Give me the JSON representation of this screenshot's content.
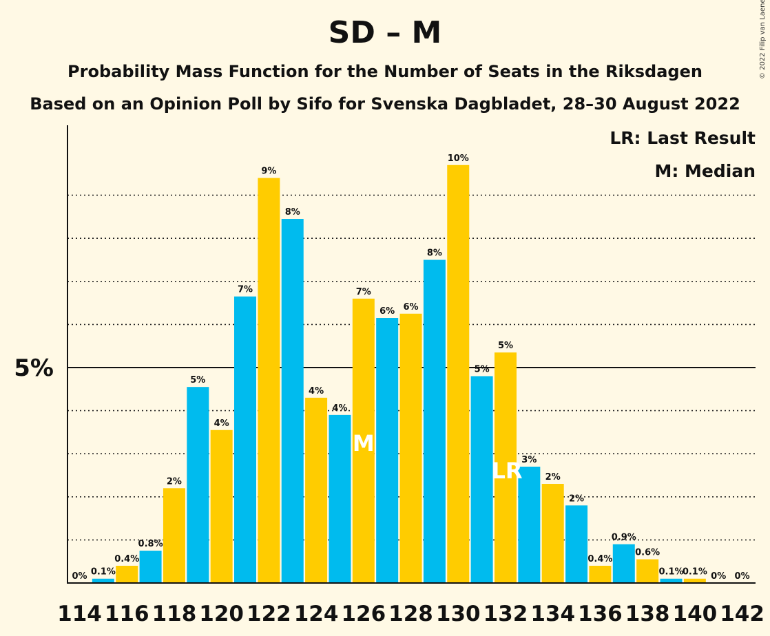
{
  "chart_data": {
    "type": "bar",
    "title": "SD – M",
    "subtitle": [
      "Probability Mass Function for the Number of Seats in the Riksdagen",
      "Based on an Opinion Poll by Sifo for Svenska Dagbladet, 28–30 August 2022"
    ],
    "copyright": "© 2022 Filip van Laenen",
    "legend": [
      "LR: Last Result",
      "M: Median"
    ],
    "legend_position": "top-right",
    "ylabel_major": "5%",
    "ylim": [
      0,
      11
    ],
    "grid": true,
    "x_tick_labels": [
      "114",
      "116",
      "118",
      "120",
      "122",
      "124",
      "126",
      "128",
      "130",
      "132",
      "134",
      "136",
      "138",
      "140",
      "142"
    ],
    "colors": {
      "blue": "#00BBEE",
      "yellow": "#FFCC00",
      "background": "#FFF9E5"
    },
    "seats": [
      114,
      115,
      116,
      117,
      118,
      119,
      120,
      121,
      122,
      123,
      124,
      125,
      126,
      127,
      128,
      129,
      130,
      131,
      132,
      133,
      134,
      135,
      136,
      137,
      138,
      139,
      140,
      141,
      142
    ],
    "values": [
      0,
      0.1,
      0.4,
      0.75,
      2.2,
      4.55,
      3.55,
      6.65,
      9.4,
      8.45,
      4.3,
      3.9,
      6.6,
      6.15,
      6.25,
      7.5,
      9.7,
      4.8,
      5.35,
      2.7,
      2.3,
      1.8,
      0.4,
      0.9,
      0.55,
      0.1,
      0.1,
      0,
      0
    ],
    "labels": [
      "0%",
      "0.1%",
      "0.4%",
      "0.8%",
      "2%",
      "5%",
      "4%",
      "7%",
      "9%",
      "8%",
      "4%",
      "4%",
      "7%",
      "6%",
      "6%",
      "8%",
      "10%",
      "5%",
      "5%",
      "3%",
      "2%",
      "2%",
      "0.4%",
      "0.9%",
      "0.6%",
      "0.1%",
      "0.1%",
      "0%",
      "0%"
    ],
    "bar_colors": [
      "yellow",
      "blue",
      "yellow",
      "blue",
      "yellow",
      "blue",
      "yellow",
      "blue",
      "yellow",
      "blue",
      "yellow",
      "blue",
      "yellow",
      "blue",
      "yellow",
      "blue",
      "yellow",
      "blue",
      "yellow",
      "blue",
      "yellow",
      "blue",
      "yellow",
      "blue",
      "yellow",
      "blue",
      "yellow",
      "blue",
      "yellow"
    ],
    "median_seat": 126,
    "median_mark": "M",
    "last_result_seat": 132,
    "last_result_mark": "LR"
  }
}
